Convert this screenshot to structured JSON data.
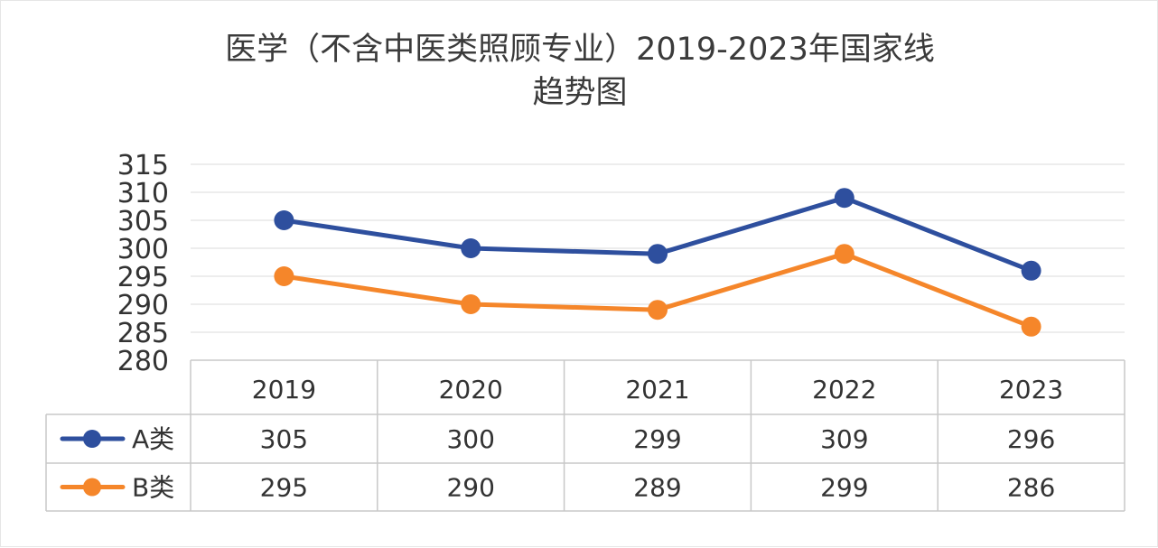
{
  "chart_data": {
    "type": "line",
    "title_line1": "医学（不含中医类照顾专业）2019-2023年国家线",
    "title_line2": "趋势图",
    "categories": [
      "2019",
      "2020",
      "2021",
      "2022",
      "2023"
    ],
    "series": [
      {
        "name": "A类",
        "values": [
          305,
          300,
          299,
          309,
          296
        ],
        "color": "#2E4F9E"
      },
      {
        "name": "B类",
        "values": [
          295,
          290,
          289,
          299,
          286
        ],
        "color": "#F5862A"
      }
    ],
    "ylim": [
      280,
      315
    ],
    "yticks": [
      280,
      285,
      290,
      295,
      300,
      305,
      310,
      315
    ],
    "grid": true,
    "legend": "data-table-below",
    "xlabel": "",
    "ylabel": ""
  }
}
